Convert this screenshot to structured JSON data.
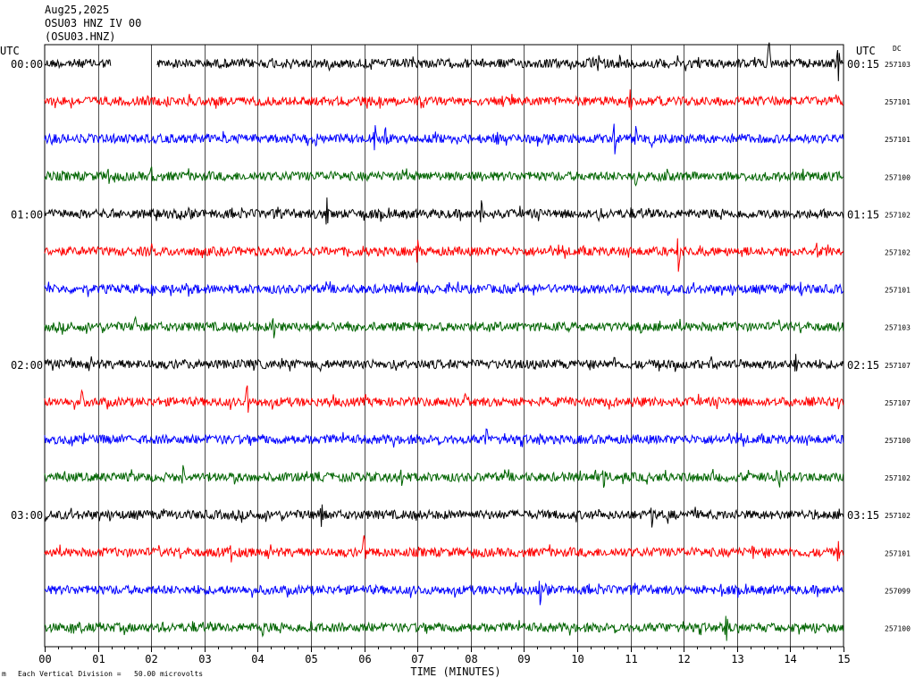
{
  "header": {
    "date": "Aug25,2025",
    "station_line": "OSU03 HNZ IV 00",
    "station_code": "(OSU03.HNZ)"
  },
  "chart_data": {
    "type": "line",
    "title": "OSU03 HNZ IV 00",
    "left_axis_label": "UTC",
    "right_axis_label": "UTC",
    "dc_label": "DC",
    "xlabel": "TIME (MINUTES)",
    "x_ticks": [
      "00",
      "01",
      "02",
      "03",
      "04",
      "05",
      "06",
      "07",
      "08",
      "09",
      "10",
      "11",
      "12",
      "13",
      "14",
      "15"
    ],
    "xlim": [
      0,
      15
    ],
    "left_time_labels": [
      {
        "row": 0,
        "text": "00:00"
      },
      {
        "row": 4,
        "text": "01:00"
      },
      {
        "row": 8,
        "text": "02:00"
      },
      {
        "row": 12,
        "text": "03:00"
      }
    ],
    "right_time_labels": [
      {
        "row": 0,
        "text": "00:15"
      },
      {
        "row": 4,
        "text": "01:15"
      },
      {
        "row": 8,
        "text": "02:15"
      },
      {
        "row": 12,
        "text": "03:15"
      }
    ],
    "series": [
      {
        "color": "#000000",
        "dc": "257103",
        "gap": [
          1.25,
          2.1
        ],
        "spikes": [
          [
            10.4,
            10
          ],
          [
            10.8,
            9
          ],
          [
            13.6,
            26
          ],
          [
            14.9,
            22
          ]
        ],
        "amp": 5
      },
      {
        "color": "#ff0000",
        "dc": "257101",
        "spikes": [
          [
            2.3,
            8
          ],
          [
            8.6,
            7
          ],
          [
            11.0,
            14
          ]
        ],
        "amp": 5
      },
      {
        "color": "#0000ff",
        "dc": "257101",
        "spikes": [
          [
            5.1,
            9
          ],
          [
            6.2,
            18
          ],
          [
            6.4,
            12
          ],
          [
            8.5,
            9
          ],
          [
            10.7,
            20
          ],
          [
            11.1,
            15
          ],
          [
            11.4,
            11
          ]
        ],
        "amp": 5
      },
      {
        "color": "#006400",
        "dc": "257100",
        "spikes": [
          [
            1.2,
            10
          ],
          [
            2.0,
            12
          ],
          [
            11.1,
            12
          ]
        ],
        "amp": 5
      },
      {
        "color": "#000000",
        "dc": "257102",
        "spikes": [
          [
            5.3,
            18
          ],
          [
            8.2,
            16
          ],
          [
            10.4,
            8
          ]
        ],
        "amp": 5
      },
      {
        "color": "#ff0000",
        "dc": "257102",
        "spikes": [
          [
            7.0,
            14
          ],
          [
            11.9,
            24
          ],
          [
            14.5,
            10
          ]
        ],
        "amp": 5
      },
      {
        "color": "#0000ff",
        "dc": "257101",
        "spikes": [
          [
            8.9,
            8
          ],
          [
            14.2,
            9
          ]
        ],
        "amp": 5
      },
      {
        "color": "#006400",
        "dc": "257103",
        "spikes": [
          [
            1.7,
            11
          ],
          [
            4.3,
            15
          ],
          [
            11.2,
            8
          ]
        ],
        "amp": 5
      },
      {
        "color": "#000000",
        "dc": "257107",
        "spikes": [
          [
            0.5,
            8
          ],
          [
            10.7,
            8
          ],
          [
            14.1,
            13
          ]
        ],
        "amp": 5
      },
      {
        "color": "#ff0000",
        "dc": "257107",
        "spikes": [
          [
            0.7,
            13
          ],
          [
            3.8,
            22
          ],
          [
            7.9,
            10
          ]
        ],
        "amp": 5
      },
      {
        "color": "#0000ff",
        "dc": "257100",
        "spikes": [
          [
            8.3,
            14
          ],
          [
            9.3,
            7
          ]
        ],
        "amp": 5
      },
      {
        "color": "#006400",
        "dc": "257102",
        "spikes": [
          [
            2.6,
            13
          ],
          [
            6.7,
            10
          ],
          [
            10.5,
            14
          ],
          [
            13.8,
            12
          ]
        ],
        "amp": 5
      },
      {
        "color": "#000000",
        "dc": "257102",
        "spikes": [
          [
            5.2,
            15
          ],
          [
            11.4,
            14
          ],
          [
            11.7,
            9
          ]
        ],
        "amp": 5
      },
      {
        "color": "#ff0000",
        "dc": "257101",
        "spikes": [
          [
            3.5,
            10
          ],
          [
            6.0,
            20
          ],
          [
            13.3,
            9
          ],
          [
            14.9,
            14
          ]
        ],
        "amp": 5
      },
      {
        "color": "#0000ff",
        "dc": "257099",
        "spikes": [
          [
            9.3,
            18
          ],
          [
            12.7,
            8
          ]
        ],
        "amp": 5
      },
      {
        "color": "#006400",
        "dc": "257100",
        "spikes": [
          [
            4.1,
            12
          ],
          [
            5.0,
            8
          ],
          [
            12.8,
            18
          ]
        ],
        "amp": 5
      }
    ]
  },
  "footer": {
    "scale_text": "Each Vertical Division =   50.00 microvolts",
    "corner_mark": "m"
  }
}
